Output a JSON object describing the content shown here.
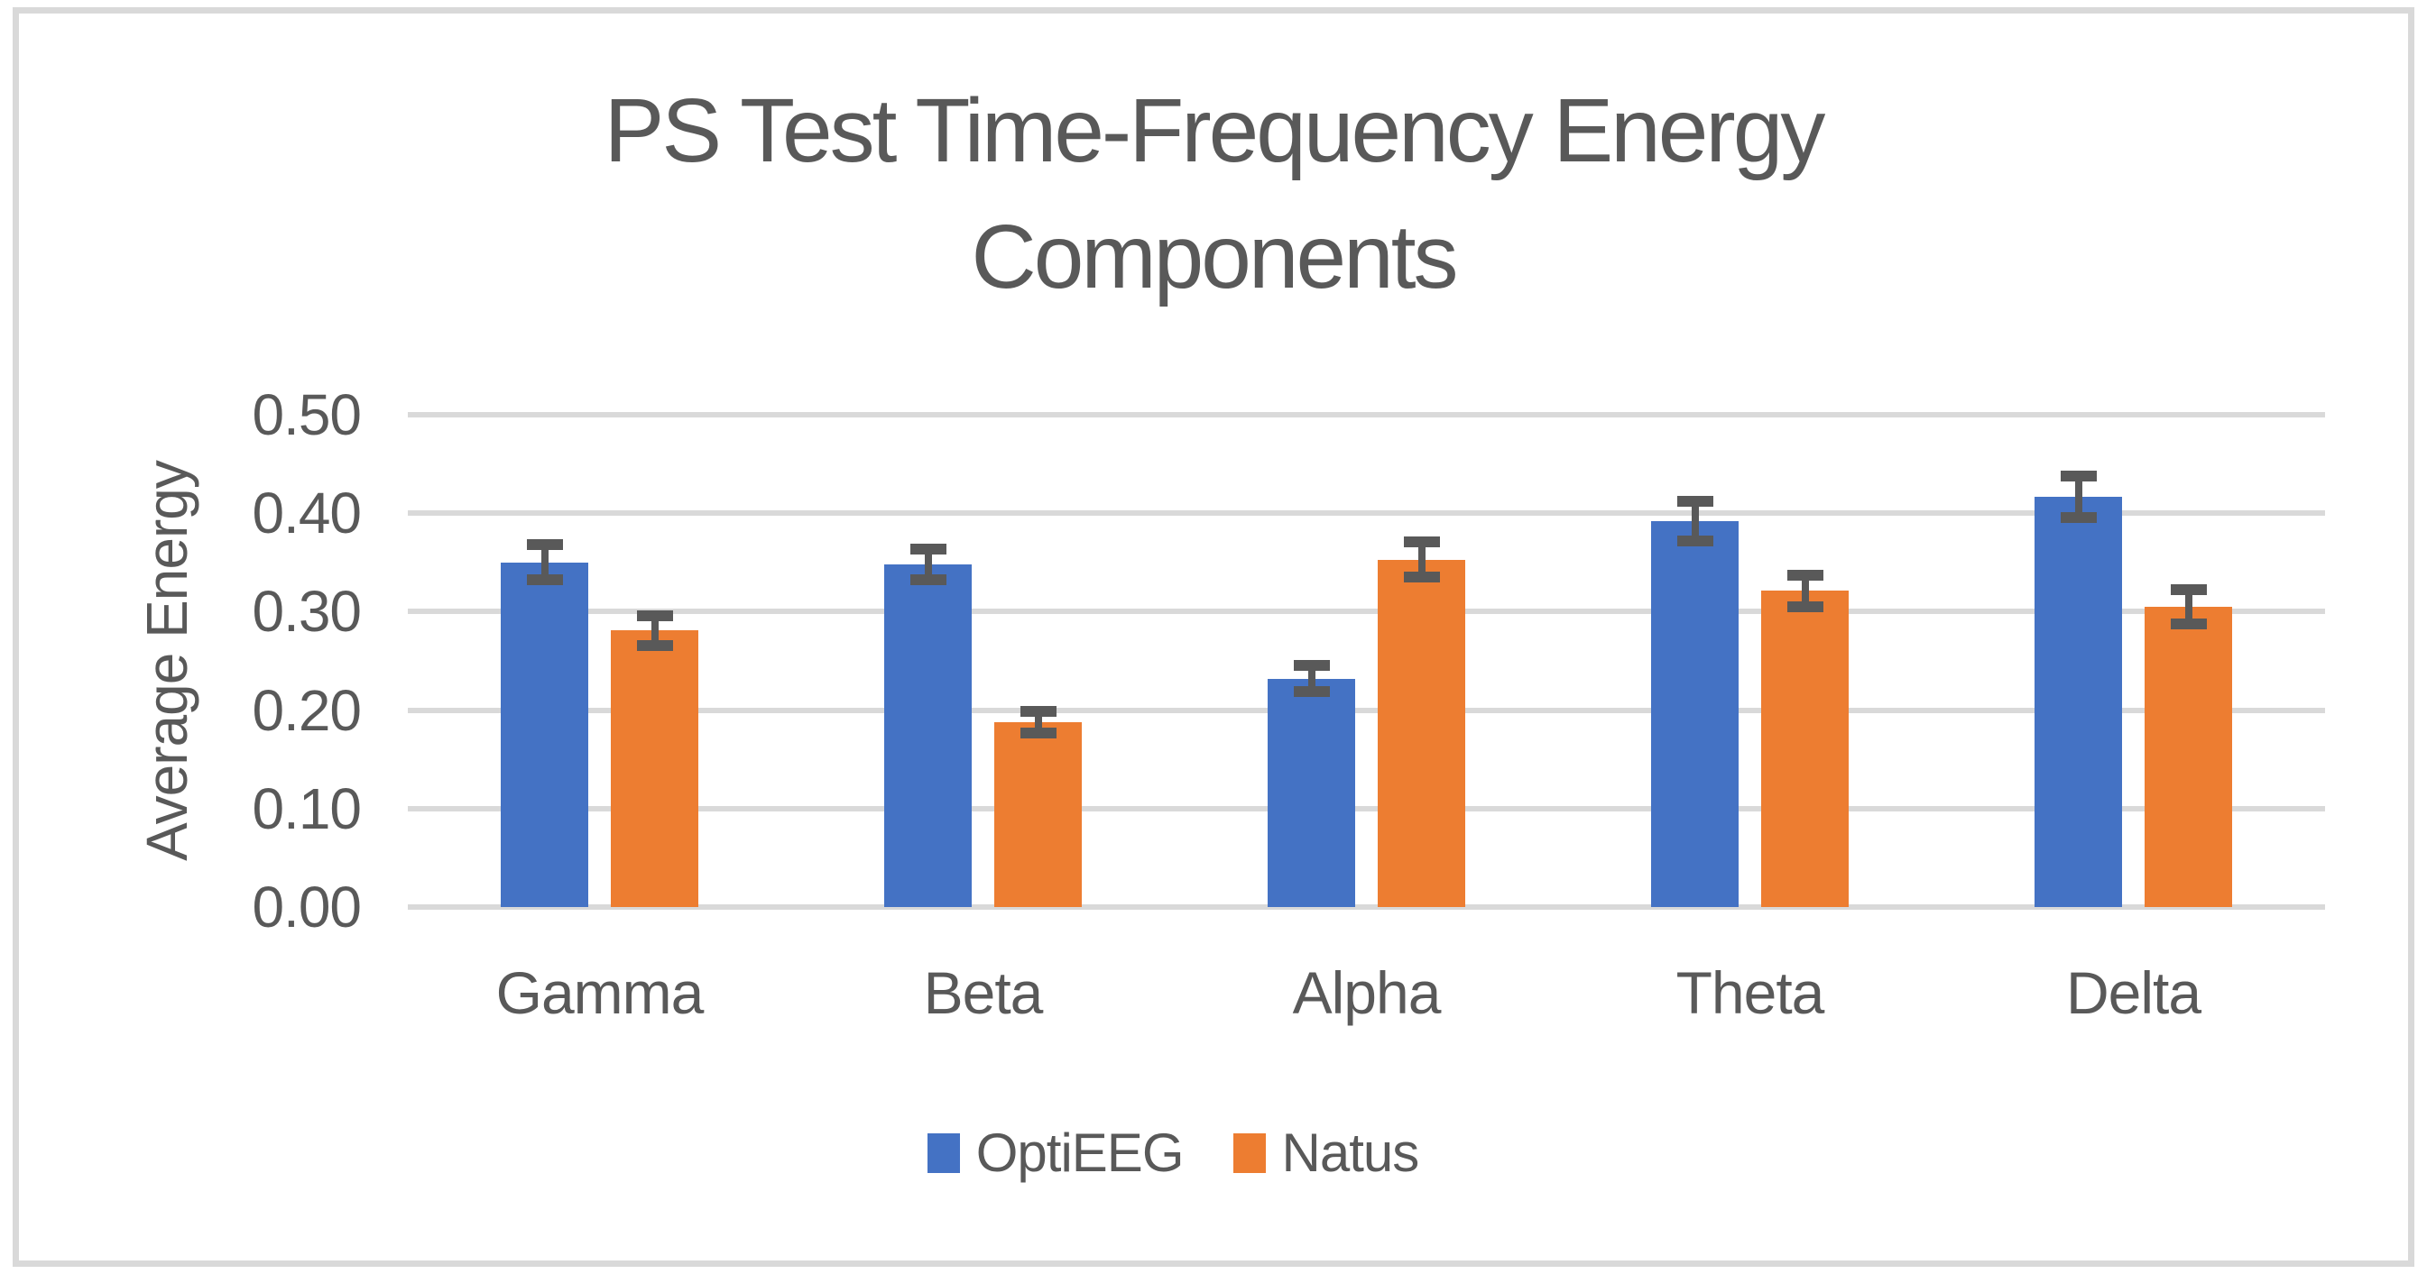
{
  "title": {
    "line1": "PS Test Time-Frequency Energy",
    "line2": "Components"
  },
  "chart_data": {
    "type": "bar",
    "title": "PS Test Time-Frequency Energy Components",
    "categories": [
      "Gamma",
      "Beta",
      "Alpha",
      "Theta",
      "Delta"
    ],
    "series": [
      {
        "name": "OptiEEG",
        "color": "#4472C4",
        "values": [
          0.35,
          0.348,
          0.232,
          0.392,
          0.417
        ],
        "errors": [
          0.018,
          0.016,
          0.013,
          0.02,
          0.021
        ]
      },
      {
        "name": "Natus",
        "color": "#ED7D31",
        "values": [
          0.281,
          0.188,
          0.353,
          0.321,
          0.305
        ],
        "errors": [
          0.015,
          0.011,
          0.018,
          0.016,
          0.017
        ]
      }
    ],
    "xlabel": "",
    "ylabel": "Average Energy",
    "ylim": [
      0,
      0.5
    ],
    "ytick_step": 0.1,
    "ytick_labels": [
      "0.00",
      "0.10",
      "0.20",
      "0.30",
      "0.40",
      "0.50"
    ],
    "grid": true,
    "legend_position": "bottom",
    "colors": {
      "text": "#595959",
      "gridline": "#D9D9D9",
      "border": "#D9D9D9",
      "error_bar": "#595959"
    }
  }
}
